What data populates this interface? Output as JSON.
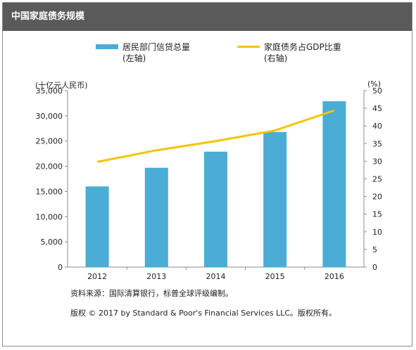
{
  "header": {
    "title": "中国家庭债务规模"
  },
  "legend": {
    "bar": {
      "line1": "居民部门信贷总量",
      "line2": "(左轴)"
    },
    "line": {
      "line1": "家庭债务占GDP比重",
      "line2": "(右轴)"
    }
  },
  "axes": {
    "left_unit": "(十亿元人民币)",
    "right_unit": "(%)"
  },
  "notes": {
    "source": "资料来源：国际清算银行，标普全球评级编制。",
    "copyright": "版权 © 2017 by Standard & Poor's Financial Services LLC。版权所有。"
  },
  "colors": {
    "header_bg": "#5a5a5a",
    "bar": "#4bacd6",
    "line": "#f5c400"
  },
  "chart_data": {
    "type": "bar",
    "categories": [
      "2012",
      "2013",
      "2014",
      "2015",
      "2016"
    ],
    "series": [
      {
        "name": "居民部门信贷总量",
        "type": "bar",
        "axis": "left",
        "values": [
          16000,
          19700,
          22900,
          26800,
          32900
        ]
      },
      {
        "name": "家庭债务占GDP比重",
        "type": "line",
        "axis": "right",
        "values": [
          29.8,
          33.1,
          35.7,
          38.7,
          44.4
        ]
      }
    ],
    "ylim_left": [
      0,
      35000
    ],
    "ylim_right": [
      0,
      50
    ],
    "yticks_left": [
      "0",
      "5,000",
      "10,000",
      "15,000",
      "20,000",
      "25,000",
      "30,000",
      "35,000"
    ],
    "yticks_right": [
      "0",
      "5",
      "10",
      "15",
      "20",
      "25",
      "30",
      "35",
      "40",
      "45",
      "50"
    ],
    "ylabel_left": "(十亿元人民币)",
    "ylabel_right": "(%)",
    "grid": false,
    "legend_position": "top"
  }
}
